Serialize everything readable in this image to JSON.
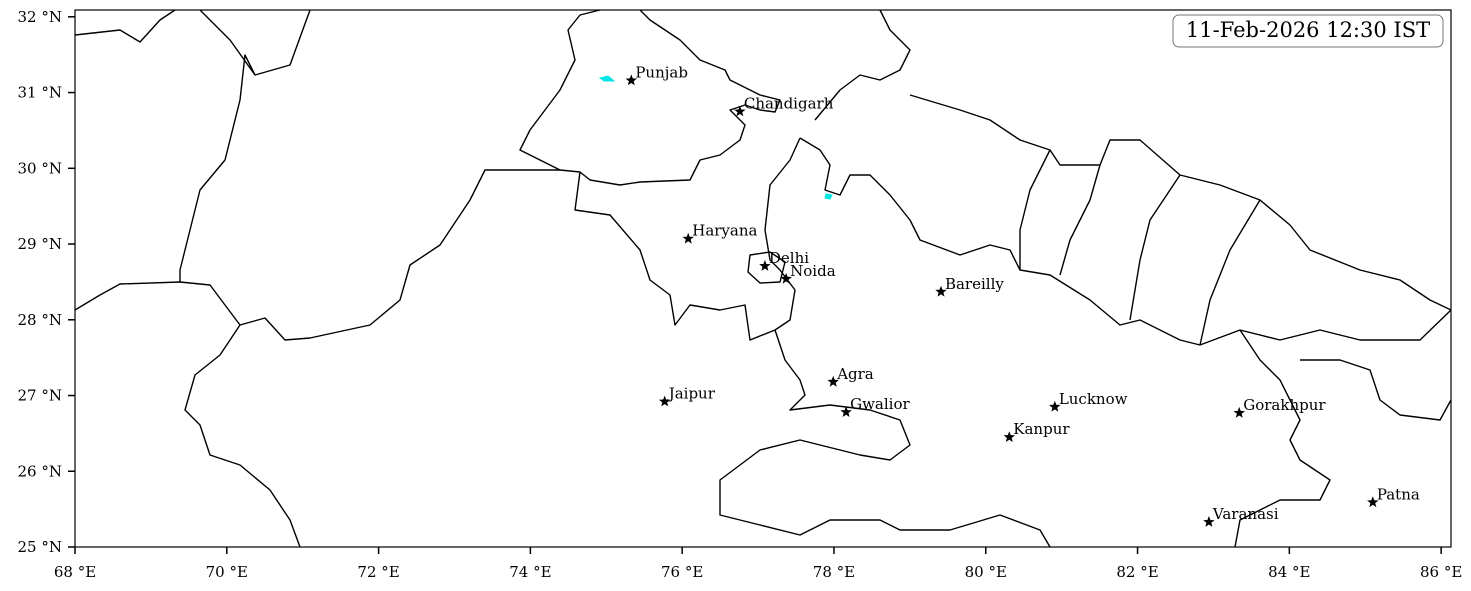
{
  "map": {
    "title": "11-Feb-2026 12:30 IST",
    "xlim": [
      68,
      86.13
    ],
    "ylim": [
      25,
      32.09
    ],
    "xticks": [
      {
        "value": 68,
        "label": "68 °E"
      },
      {
        "value": 70,
        "label": "70 °E"
      },
      {
        "value": 72,
        "label": "72 °E"
      },
      {
        "value": 74,
        "label": "74 °E"
      },
      {
        "value": 76,
        "label": "76 °E"
      },
      {
        "value": 78,
        "label": "78 °E"
      },
      {
        "value": 80,
        "label": "80 °E"
      },
      {
        "value": 82,
        "label": "82 °E"
      },
      {
        "value": 84,
        "label": "84 °E"
      },
      {
        "value": 86,
        "label": "86 °E"
      }
    ],
    "yticks": [
      {
        "value": 25,
        "label": "25 °N"
      },
      {
        "value": 26,
        "label": "26 °N"
      },
      {
        "value": 27,
        "label": "27 °N"
      },
      {
        "value": 28,
        "label": "28 °N"
      },
      {
        "value": 29,
        "label": "29 °N"
      },
      {
        "value": 30,
        "label": "30 °N"
      },
      {
        "value": 31,
        "label": "31 °N"
      },
      {
        "value": 32,
        "label": "32 °N"
      }
    ],
    "places": [
      {
        "name": "Punjab",
        "lon": 75.33,
        "lat": 31.16
      },
      {
        "name": "Chandigarh",
        "lon": 76.76,
        "lat": 30.75
      },
      {
        "name": "Haryana",
        "lon": 76.08,
        "lat": 29.07
      },
      {
        "name": "Delhi",
        "lon": 77.09,
        "lat": 28.71
      },
      {
        "name": "Noida",
        "lon": 77.37,
        "lat": 28.54
      },
      {
        "name": "Bareilly",
        "lon": 79.41,
        "lat": 28.37
      },
      {
        "name": "Agra",
        "lon": 77.99,
        "lat": 27.18
      },
      {
        "name": "Jaipur",
        "lon": 75.77,
        "lat": 26.92
      },
      {
        "name": "Gwalior",
        "lon": 78.16,
        "lat": 26.78
      },
      {
        "name": "Lucknow",
        "lon": 80.91,
        "lat": 26.85
      },
      {
        "name": "Gorakhpur",
        "lon": 83.34,
        "lat": 26.77
      },
      {
        "name": "Kanpur",
        "lon": 80.31,
        "lat": 26.45
      },
      {
        "name": "Patna",
        "lon": 85.1,
        "lat": 25.59
      },
      {
        "name": "Varanasi",
        "lon": 82.94,
        "lat": 25.33
      }
    ]
  }
}
